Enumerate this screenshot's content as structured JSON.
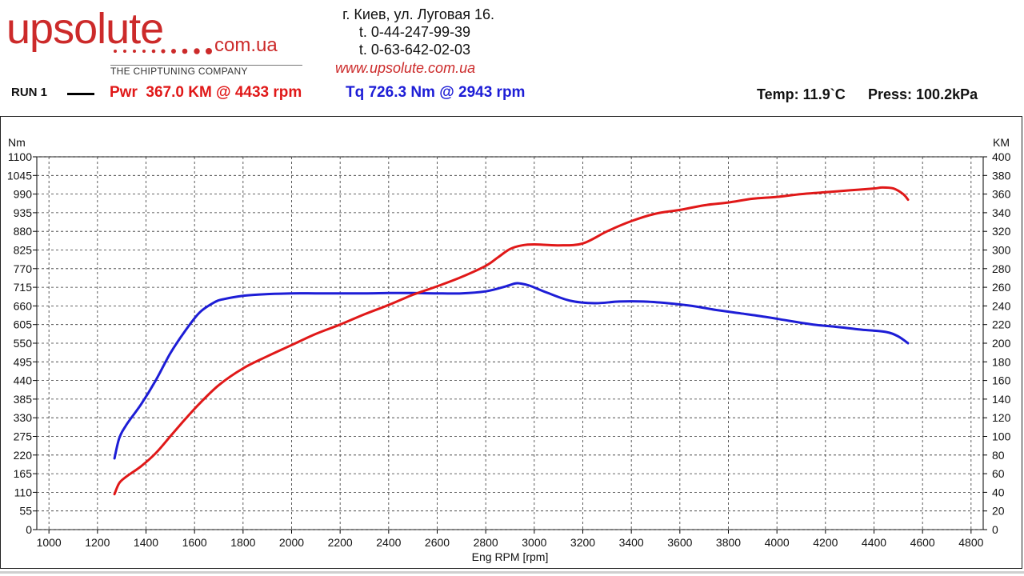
{
  "header": {
    "logo": {
      "brand": "upsolute",
      "domain": "com.ua",
      "tagline": "THE CHIPTUNING COMPANY"
    },
    "contact": {
      "address": "г. Киев, ул. Луговая 16.",
      "phone1": "t. 0-44-247-99-39",
      "phone2": "t. 0-63-642-02-03",
      "website": "www.upsolute.com.ua"
    }
  },
  "run": {
    "label": "RUN 1",
    "power_text": "Pwr  367.0 KM @ 4433 rpm",
    "torque_text": "Tq 726.3 Nm @ 2943 rpm",
    "temp_text": "Temp: 11.9`C",
    "press_text": "Press: 100.2kPa"
  },
  "colors": {
    "power": "#e01818",
    "torque": "#1d1dd6",
    "logo": "#cc2a2a"
  },
  "chart_data": {
    "type": "line",
    "title": "",
    "xlabel": "Eng RPM [rpm]",
    "ylabel": "Nm",
    "y2label": "KM",
    "xlim": [
      950,
      4850
    ],
    "ylim": [
      0,
      1100
    ],
    "y2lim": [
      0,
      400
    ],
    "x_ticks": [
      "1000",
      "1200",
      "1400",
      "1600",
      "1800",
      "2000",
      "2200",
      "2400",
      "2600",
      "2800",
      "3000",
      "3200",
      "3400",
      "3600",
      "3800",
      "4000",
      "4200",
      "4400",
      "4600",
      "4800"
    ],
    "y_ticks": [
      "0",
      "55",
      "110",
      "165",
      "220",
      "275",
      "330",
      "385",
      "440",
      "495",
      "550",
      "605",
      "660",
      "715",
      "770",
      "825",
      "880",
      "935",
      "990",
      "1045",
      "1100"
    ],
    "y2_ticks": [
      "0",
      "20",
      "40",
      "60",
      "80",
      "100",
      "120",
      "140",
      "160",
      "180",
      "200",
      "220",
      "240",
      "260",
      "280",
      "300",
      "320",
      "340",
      "360",
      "380",
      "400"
    ],
    "grid": true,
    "series": [
      {
        "axis": "left",
        "color": "#1d1dd6",
        "x": [
          1270,
          1290,
          1320,
          1380,
          1440,
          1500,
          1560,
          1620,
          1680,
          1720,
          1800,
          1900,
          2000,
          2100,
          2200,
          2300,
          2400,
          2500,
          2600,
          2700,
          2800,
          2870,
          2920,
          2943,
          2980,
          3050,
          3150,
          3250,
          3350,
          3450,
          3550,
          3650,
          3750,
          3850,
          3950,
          4050,
          4150,
          4250,
          4350,
          4450,
          4500,
          4540
        ],
        "y": [
          210,
          270,
          310,
          370,
          440,
          520,
          585,
          640,
          670,
          680,
          690,
          695,
          697,
          697,
          697,
          697,
          698,
          698,
          697,
          697,
          703,
          715,
          726,
          726,
          720,
          700,
          675,
          668,
          673,
          673,
          668,
          660,
          648,
          638,
          628,
          616,
          605,
          598,
          590,
          583,
          570,
          550
        ]
      },
      {
        "axis": "right",
        "color": "#e01818",
        "x": [
          1270,
          1290,
          1320,
          1380,
          1440,
          1500,
          1560,
          1620,
          1700,
          1800,
          1900,
          2000,
          2100,
          2200,
          2300,
          2400,
          2500,
          2600,
          2700,
          2800,
          2850,
          2900,
          2950,
          3000,
          3100,
          3200,
          3300,
          3400,
          3500,
          3600,
          3700,
          3800,
          3900,
          4000,
          4100,
          4200,
          4300,
          4400,
          4433,
          4480,
          4520,
          4540
        ],
        "y": [
          38,
          50,
          57,
          68,
          82,
          100,
          118,
          135,
          155,
          173,
          186,
          198,
          210,
          220,
          231,
          241,
          252,
          261,
          271,
          283,
          292,
          301,
          305,
          306,
          305,
          307,
          320,
          331,
          339,
          343,
          348,
          351,
          355,
          357,
          360,
          362,
          364,
          366,
          367,
          366,
          360,
          354
        ]
      }
    ]
  }
}
